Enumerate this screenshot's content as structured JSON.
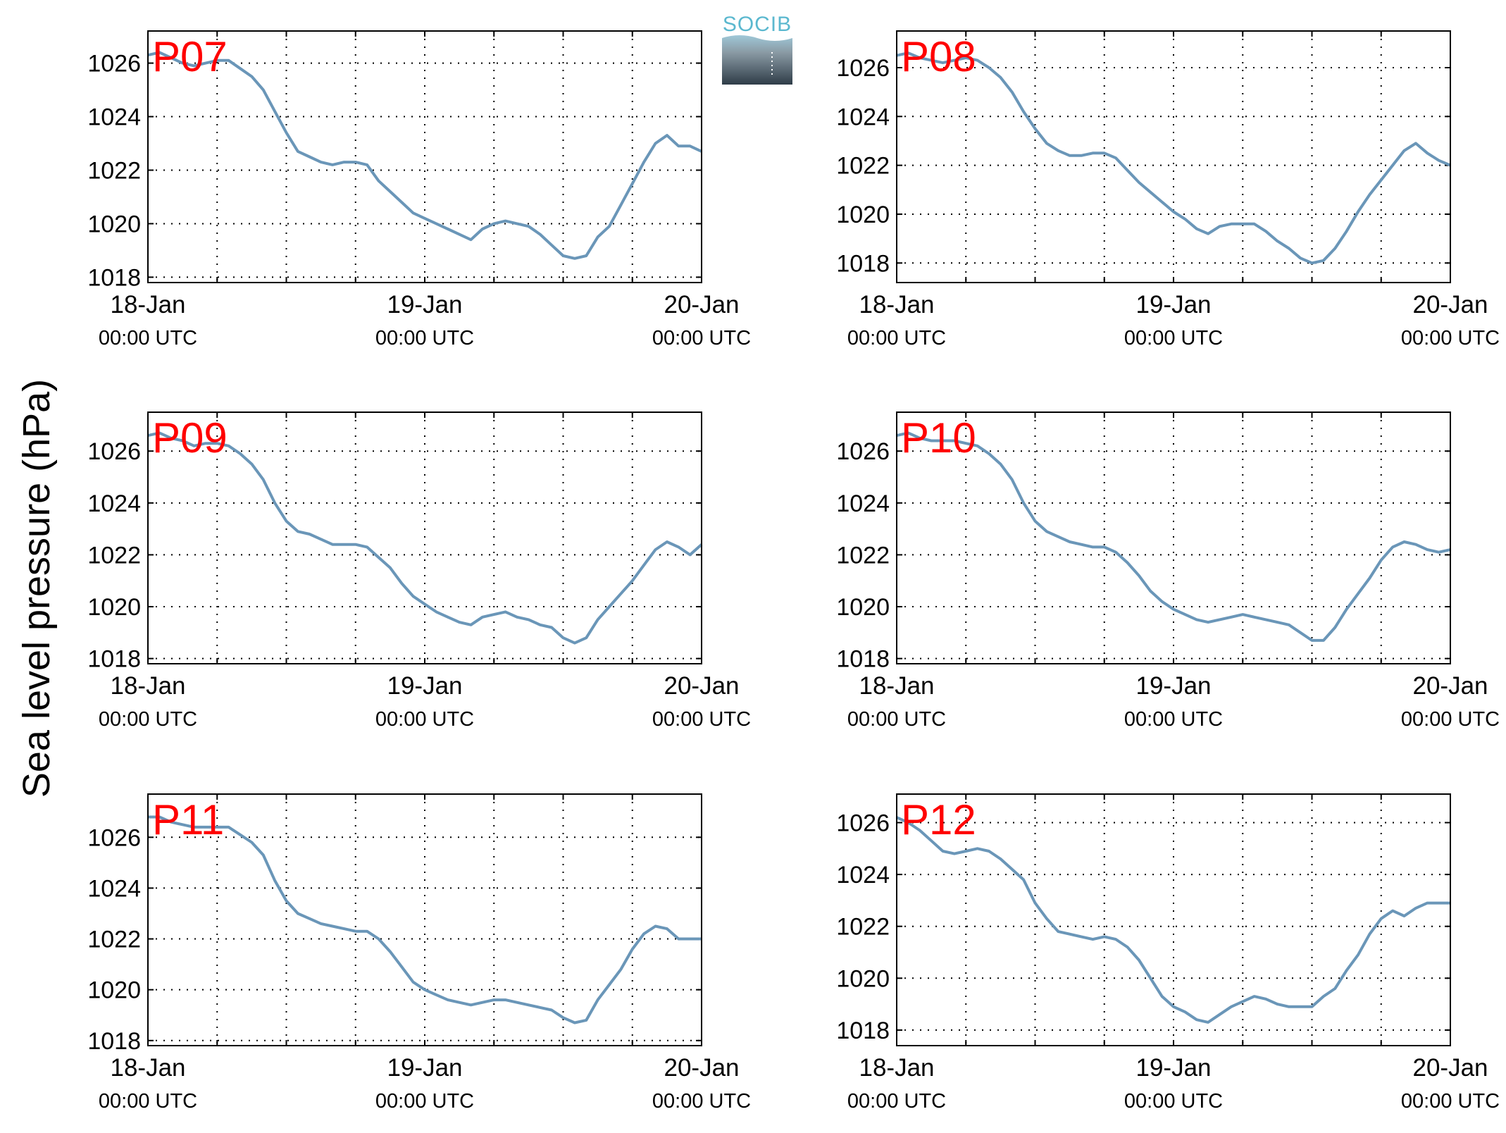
{
  "ylabel": "Sea level pressure (hPa)",
  "logo": {
    "text": "SOCIB"
  },
  "colors": {
    "line": "#6a96b8",
    "panel_label": "#ff0000",
    "grid": "#000000"
  },
  "chart_data": [
    {
      "type": "line",
      "panel_label": "P07",
      "x_unit": "hours since 18-Jan 00:00 UTC",
      "xlim": [
        0,
        48
      ],
      "ylim": [
        1017.8,
        1027.2
      ],
      "yticks": [
        1018,
        1020,
        1022,
        1024,
        1026
      ],
      "xticks": [
        {
          "date": "18-Jan",
          "time": "00:00 UTC"
        },
        {
          "date": "19-Jan",
          "time": "00:00 UTC"
        },
        {
          "date": "20-Jan",
          "time": "00:00 UTC"
        }
      ],
      "grid": true,
      "series": [
        {
          "x": [
            0,
            1,
            2,
            3,
            4,
            5,
            6,
            7,
            8,
            9,
            10,
            11,
            12,
            13,
            14,
            15,
            16,
            17,
            18,
            19,
            20,
            21,
            22,
            23,
            24,
            25,
            26,
            27,
            28,
            29,
            30,
            31,
            32,
            33,
            34,
            35,
            36,
            37,
            38,
            39,
            40,
            41,
            42,
            43,
            44,
            45,
            46,
            47,
            48
          ],
          "y": [
            1026.3,
            1026.4,
            1026.2,
            1026.0,
            1025.9,
            1026.0,
            1026.1,
            1026.1,
            1025.8,
            1025.5,
            1025.0,
            1024.2,
            1023.4,
            1022.7,
            1022.5,
            1022.3,
            1022.2,
            1022.3,
            1022.3,
            1022.2,
            1021.6,
            1021.2,
            1020.8,
            1020.4,
            1020.2,
            1020.0,
            1019.8,
            1019.6,
            1019.4,
            1019.8,
            1020.0,
            1020.1,
            1020.0,
            1019.9,
            1019.6,
            1019.2,
            1018.8,
            1018.7,
            1018.8,
            1019.5,
            1019.9,
            1020.7,
            1021.5,
            1022.3,
            1023.0,
            1023.3,
            1022.9,
            1022.9,
            1022.7
          ]
        }
      ]
    },
    {
      "type": "line",
      "panel_label": "P08",
      "xlim": [
        0,
        48
      ],
      "ylim": [
        1017.2,
        1027.5
      ],
      "yticks": [
        1018,
        1020,
        1022,
        1024,
        1026
      ],
      "xticks": [
        {
          "date": "18-Jan",
          "time": "00:00 UTC"
        },
        {
          "date": "19-Jan",
          "time": "00:00 UTC"
        },
        {
          "date": "20-Jan",
          "time": "00:00 UTC"
        }
      ],
      "grid": true,
      "series": [
        {
          "x": [
            0,
            1,
            2,
            3,
            4,
            5,
            6,
            7,
            8,
            9,
            10,
            11,
            12,
            13,
            14,
            15,
            16,
            17,
            18,
            19,
            20,
            21,
            22,
            23,
            24,
            25,
            26,
            27,
            28,
            29,
            30,
            31,
            32,
            33,
            34,
            35,
            36,
            37,
            38,
            39,
            40,
            41,
            42,
            43,
            44,
            45,
            46,
            47,
            48
          ],
          "y": [
            1026.5,
            1026.6,
            1026.4,
            1026.3,
            1026.2,
            1026.3,
            1026.4,
            1026.3,
            1026.0,
            1025.6,
            1025.0,
            1024.2,
            1023.5,
            1022.9,
            1022.6,
            1022.4,
            1022.4,
            1022.5,
            1022.5,
            1022.3,
            1021.8,
            1021.3,
            1020.9,
            1020.5,
            1020.1,
            1019.8,
            1019.4,
            1019.2,
            1019.5,
            1019.6,
            1019.6,
            1019.6,
            1019.3,
            1018.9,
            1018.6,
            1018.2,
            1018.0,
            1018.1,
            1018.6,
            1019.3,
            1020.1,
            1020.8,
            1021.4,
            1022.0,
            1022.6,
            1022.9,
            1022.5,
            1022.2,
            1022.0
          ]
        }
      ]
    },
    {
      "type": "line",
      "panel_label": "P09",
      "xlim": [
        0,
        48
      ],
      "ylim": [
        1017.8,
        1027.5
      ],
      "yticks": [
        1018,
        1020,
        1022,
        1024,
        1026
      ],
      "xticks": [
        {
          "date": "18-Jan",
          "time": "00:00 UTC"
        },
        {
          "date": "19-Jan",
          "time": "00:00 UTC"
        },
        {
          "date": "20-Jan",
          "time": "00:00 UTC"
        }
      ],
      "grid": true,
      "series": [
        {
          "x": [
            0,
            1,
            2,
            3,
            4,
            5,
            6,
            7,
            8,
            9,
            10,
            11,
            12,
            13,
            14,
            15,
            16,
            17,
            18,
            19,
            20,
            21,
            22,
            23,
            24,
            25,
            26,
            27,
            28,
            29,
            30,
            31,
            32,
            33,
            34,
            35,
            36,
            37,
            38,
            39,
            40,
            41,
            42,
            43,
            44,
            45,
            46,
            47,
            48
          ],
          "y": [
            1026.6,
            1026.7,
            1026.5,
            1026.4,
            1026.2,
            1026.3,
            1026.3,
            1026.2,
            1025.9,
            1025.5,
            1024.9,
            1024.0,
            1023.3,
            1022.9,
            1022.8,
            1022.6,
            1022.4,
            1022.4,
            1022.4,
            1022.3,
            1021.9,
            1021.5,
            1020.9,
            1020.4,
            1020.1,
            1019.8,
            1019.6,
            1019.4,
            1019.3,
            1019.6,
            1019.7,
            1019.8,
            1019.6,
            1019.5,
            1019.3,
            1019.2,
            1018.8,
            1018.6,
            1018.8,
            1019.5,
            1020.0,
            1020.5,
            1021.0,
            1021.6,
            1022.2,
            1022.5,
            1022.3,
            1022.0,
            1022.4
          ]
        }
      ]
    },
    {
      "type": "line",
      "panel_label": "P10",
      "xlim": [
        0,
        48
      ],
      "ylim": [
        1017.8,
        1027.5
      ],
      "yticks": [
        1018,
        1020,
        1022,
        1024,
        1026
      ],
      "xticks": [
        {
          "date": "18-Jan",
          "time": "00:00 UTC"
        },
        {
          "date": "19-Jan",
          "time": "00:00 UTC"
        },
        {
          "date": "20-Jan",
          "time": "00:00 UTC"
        }
      ],
      "grid": true,
      "series": [
        {
          "x": [
            0,
            1,
            2,
            3,
            4,
            5,
            6,
            7,
            8,
            9,
            10,
            11,
            12,
            13,
            14,
            15,
            16,
            17,
            18,
            19,
            20,
            21,
            22,
            23,
            24,
            25,
            26,
            27,
            28,
            29,
            30,
            31,
            32,
            33,
            34,
            35,
            36,
            37,
            38,
            39,
            40,
            41,
            42,
            43,
            44,
            45,
            46,
            47,
            48
          ],
          "y": [
            1026.6,
            1026.7,
            1026.5,
            1026.4,
            1026.4,
            1026.4,
            1026.3,
            1026.2,
            1025.9,
            1025.5,
            1024.9,
            1024.0,
            1023.3,
            1022.9,
            1022.7,
            1022.5,
            1022.4,
            1022.3,
            1022.3,
            1022.1,
            1021.7,
            1021.2,
            1020.6,
            1020.2,
            1019.9,
            1019.7,
            1019.5,
            1019.4,
            1019.5,
            1019.6,
            1019.7,
            1019.6,
            1019.5,
            1019.4,
            1019.3,
            1019.0,
            1018.7,
            1018.7,
            1019.2,
            1019.9,
            1020.5,
            1021.1,
            1021.8,
            1022.3,
            1022.5,
            1022.4,
            1022.2,
            1022.1,
            1022.2
          ]
        }
      ]
    },
    {
      "type": "line",
      "panel_label": "P11",
      "xlim": [
        0,
        48
      ],
      "ylim": [
        1017.8,
        1027.7
      ],
      "yticks": [
        1018,
        1020,
        1022,
        1024,
        1026
      ],
      "xticks": [
        {
          "date": "18-Jan",
          "time": "00:00 UTC"
        },
        {
          "date": "19-Jan",
          "time": "00:00 UTC"
        },
        {
          "date": "20-Jan",
          "time": "00:00 UTC"
        }
      ],
      "grid": true,
      "series": [
        {
          "x": [
            0,
            1,
            2,
            3,
            4,
            5,
            6,
            7,
            8,
            9,
            10,
            11,
            12,
            13,
            14,
            15,
            16,
            17,
            18,
            19,
            20,
            21,
            22,
            23,
            24,
            25,
            26,
            27,
            28,
            29,
            30,
            31,
            32,
            33,
            34,
            35,
            36,
            37,
            38,
            39,
            40,
            41,
            42,
            43,
            44,
            45,
            46,
            47,
            48
          ],
          "y": [
            1026.8,
            1026.8,
            1026.6,
            1026.5,
            1026.4,
            1026.4,
            1026.4,
            1026.4,
            1026.1,
            1025.8,
            1025.3,
            1024.3,
            1023.5,
            1023.0,
            1022.8,
            1022.6,
            1022.5,
            1022.4,
            1022.3,
            1022.3,
            1022.0,
            1021.5,
            1020.9,
            1020.3,
            1020.0,
            1019.8,
            1019.6,
            1019.5,
            1019.4,
            1019.5,
            1019.6,
            1019.6,
            1019.5,
            1019.4,
            1019.3,
            1019.2,
            1018.9,
            1018.7,
            1018.8,
            1019.6,
            1020.2,
            1020.8,
            1021.6,
            1022.2,
            1022.5,
            1022.4,
            1022.0,
            1022.0,
            1022.0
          ]
        }
      ]
    },
    {
      "type": "line",
      "panel_label": "P12",
      "xlim": [
        0,
        48
      ],
      "ylim": [
        1017.4,
        1027.1
      ],
      "yticks": [
        1018,
        1020,
        1022,
        1024,
        1026
      ],
      "xticks": [
        {
          "date": "18-Jan",
          "time": "00:00 UTC"
        },
        {
          "date": "19-Jan",
          "time": "00:00 UTC"
        },
        {
          "date": "20-Jan",
          "time": "00:00 UTC"
        }
      ],
      "grid": true,
      "series": [
        {
          "x": [
            0,
            1,
            2,
            3,
            4,
            5,
            6,
            7,
            8,
            9,
            10,
            11,
            12,
            13,
            14,
            15,
            16,
            17,
            18,
            19,
            20,
            21,
            22,
            23,
            24,
            25,
            26,
            27,
            28,
            29,
            30,
            31,
            32,
            33,
            34,
            35,
            36,
            37,
            38,
            39,
            40,
            41,
            42,
            43,
            44,
            45,
            46,
            47,
            48
          ],
          "y": [
            1026.2,
            1026.0,
            1025.7,
            1025.3,
            1024.9,
            1024.8,
            1024.9,
            1025.0,
            1024.9,
            1024.6,
            1024.2,
            1023.8,
            1022.9,
            1022.3,
            1021.8,
            1021.7,
            1021.6,
            1021.5,
            1021.6,
            1021.5,
            1021.2,
            1020.7,
            1020.0,
            1019.3,
            1018.9,
            1018.7,
            1018.4,
            1018.3,
            1018.6,
            1018.9,
            1019.1,
            1019.3,
            1019.2,
            1019.0,
            1018.9,
            1018.9,
            1018.9,
            1019.3,
            1019.6,
            1020.3,
            1020.9,
            1021.7,
            1022.3,
            1022.6,
            1022.4,
            1022.7,
            1022.9,
            1022.9,
            1022.9
          ]
        }
      ]
    }
  ]
}
